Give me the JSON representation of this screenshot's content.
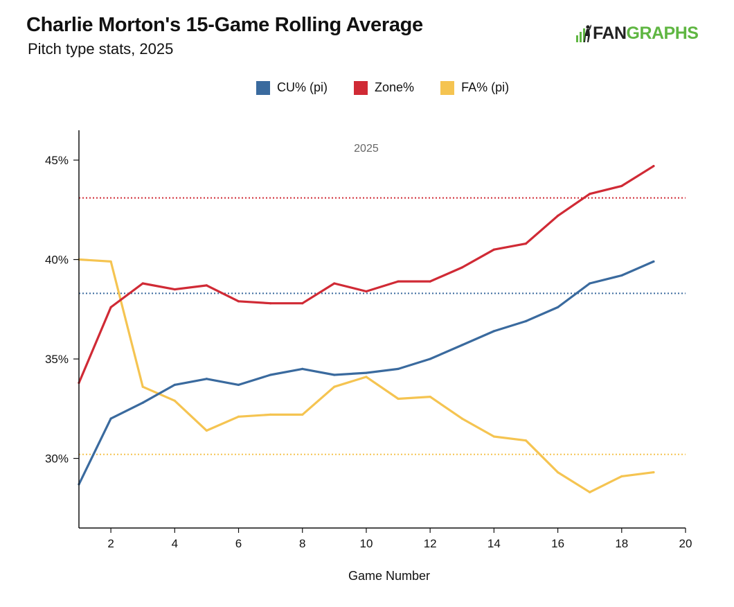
{
  "header": {
    "title": "Charlie Morton's 15-Game Rolling Average",
    "subtitle": "Pitch type stats, 2025"
  },
  "logo": {
    "text_dark": "FAN",
    "text_green": "GRAPHS",
    "icon": "fangraphs-batter-icon",
    "colors": {
      "dark": "#222222",
      "green": "#5fb642"
    }
  },
  "legend": {
    "items": [
      {
        "label": "CU% (pi)",
        "color": "#3a6a9e"
      },
      {
        "label": "Zone%",
        "color": "#d02a35"
      },
      {
        "label": "FA% (pi)",
        "color": "#f5c451"
      }
    ]
  },
  "chart_data": {
    "type": "line",
    "title": "Charlie Morton's 15-Game Rolling Average",
    "subtitle": "Pitch type stats, 2025",
    "xlabel": "Game Number",
    "ylabel": "",
    "xlim": [
      1,
      20
    ],
    "ylim": [
      26.5,
      46.5
    ],
    "x_ticks": [
      2,
      4,
      6,
      8,
      10,
      12,
      14,
      16,
      18,
      20
    ],
    "y_ticks": [
      {
        "value": 30,
        "label": "30%"
      },
      {
        "value": 35,
        "label": "35%"
      },
      {
        "value": 40,
        "label": "40%"
      },
      {
        "value": 45,
        "label": "45%"
      }
    ],
    "annotation": "2025",
    "grid": false,
    "legend_position": "top-center",
    "series": [
      {
        "name": "CU% (pi)",
        "color": "#3a6a9e",
        "x": [
          1,
          2,
          3,
          4,
          5,
          6,
          7,
          8,
          9,
          10,
          11,
          12,
          13,
          14,
          15,
          16,
          17,
          18,
          19
        ],
        "values": [
          28.7,
          32.0,
          32.8,
          33.7,
          34.0,
          33.7,
          34.2,
          34.5,
          34.2,
          34.3,
          34.5,
          35.0,
          35.7,
          36.4,
          36.9,
          37.6,
          38.8,
          39.2,
          39.9
        ],
        "average": 38.3
      },
      {
        "name": "Zone%",
        "color": "#d02a35",
        "x": [
          1,
          2,
          3,
          4,
          5,
          6,
          7,
          8,
          9,
          10,
          11,
          12,
          13,
          14,
          15,
          16,
          17,
          18,
          19
        ],
        "values": [
          33.8,
          37.6,
          38.8,
          38.5,
          38.7,
          37.9,
          37.8,
          37.8,
          38.8,
          38.4,
          38.9,
          38.9,
          39.6,
          40.5,
          40.8,
          42.2,
          43.3,
          43.7,
          44.7
        ],
        "average": 43.1
      },
      {
        "name": "FA% (pi)",
        "color": "#f5c451",
        "x": [
          1,
          2,
          3,
          4,
          5,
          6,
          7,
          8,
          9,
          10,
          11,
          12,
          13,
          14,
          15,
          16,
          17,
          18,
          19
        ],
        "values": [
          40.0,
          39.9,
          33.6,
          32.9,
          31.4,
          32.1,
          32.2,
          32.2,
          33.6,
          34.1,
          33.0,
          33.1,
          32.0,
          31.1,
          30.9,
          29.3,
          28.3,
          29.1,
          29.3
        ],
        "average": 30.2
      }
    ]
  }
}
